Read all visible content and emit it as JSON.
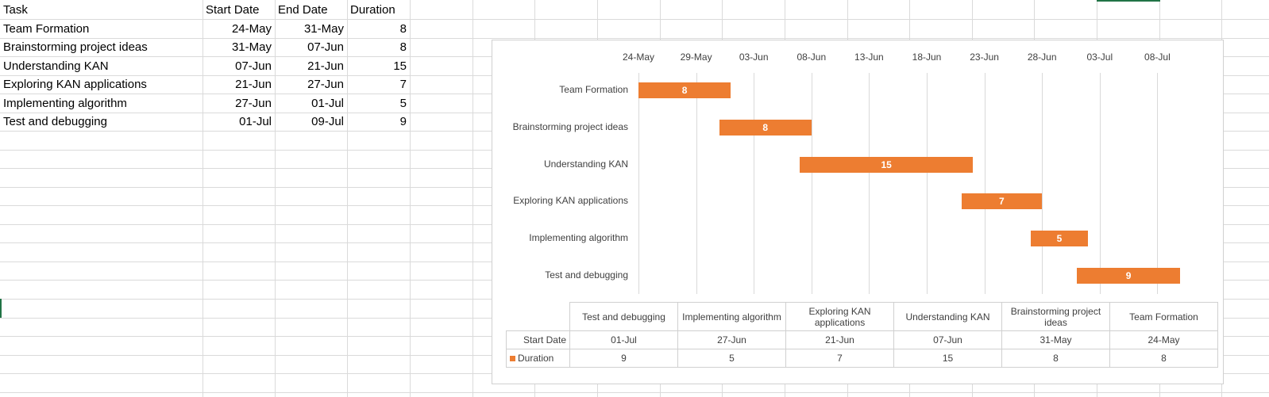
{
  "spreadsheet": {
    "headers": [
      "Task",
      "Start Date",
      "End Date",
      "Duration"
    ],
    "rows": [
      {
        "task": "Team Formation",
        "start": "24-May",
        "end": "31-May",
        "duration": "8"
      },
      {
        "task": "Brainstorming project ideas",
        "start": "31-May",
        "end": "07-Jun",
        "duration": "8"
      },
      {
        "task": "Understanding KAN",
        "start": "07-Jun",
        "end": "21-Jun",
        "duration": "15"
      },
      {
        "task": "Exploring KAN applications",
        "start": "21-Jun",
        "end": "27-Jun",
        "duration": "7"
      },
      {
        "task": "Implementing algorithm",
        "start": "27-Jun",
        "end": "01-Jul",
        "duration": "5"
      },
      {
        "task": "Test and debugging",
        "start": "01-Jul",
        "end": "09-Jul",
        "duration": "9"
      }
    ]
  },
  "colors": {
    "bar": "#ed7d31",
    "grid": "#d9d9d9",
    "selection_marker": "#217346"
  },
  "chart_data": {
    "type": "bar",
    "orientation": "horizontal-stacked-gantt",
    "x_ticks": [
      "24-May",
      "29-May",
      "03-Jun",
      "08-Jun",
      "13-Jun",
      "18-Jun",
      "23-Jun",
      "28-Jun",
      "03-Jul",
      "08-Jul"
    ],
    "xlim": [
      "2024-05-24",
      "2024-07-13"
    ],
    "categories": [
      "Team Formation",
      "Brainstorming project ideas",
      "Understanding KAN",
      "Exploring KAN applications",
      "Implementing algorithm",
      "Test and debugging"
    ],
    "series": [
      {
        "name": "Start Date",
        "values": [
          "2024-05-24",
          "2024-05-31",
          "2024-06-07",
          "2024-06-21",
          "2024-06-27",
          "2024-07-01"
        ],
        "visible": false
      },
      {
        "name": "Duration",
        "values": [
          8,
          8,
          15,
          7,
          5,
          9
        ],
        "color": "#ed7d31"
      }
    ],
    "data_labels": [
      "8",
      "8",
      "15",
      "7",
      "5",
      "9"
    ],
    "grid": true,
    "data_table": {
      "columns": [
        "Test and debugging",
        "Implementing algorithm",
        "Exploring KAN applications",
        "Understanding KAN",
        "Brainstorming project ideas",
        "Team Formation"
      ],
      "rows": [
        {
          "label": "Start Date",
          "legend_key": false,
          "values": [
            "01-Jul",
            "27-Jun",
            "21-Jun",
            "07-Jun",
            "31-May",
            "24-May"
          ]
        },
        {
          "label": "Duration",
          "legend_key": true,
          "values": [
            "9",
            "5",
            "7",
            "15",
            "8",
            "8"
          ]
        }
      ]
    }
  }
}
